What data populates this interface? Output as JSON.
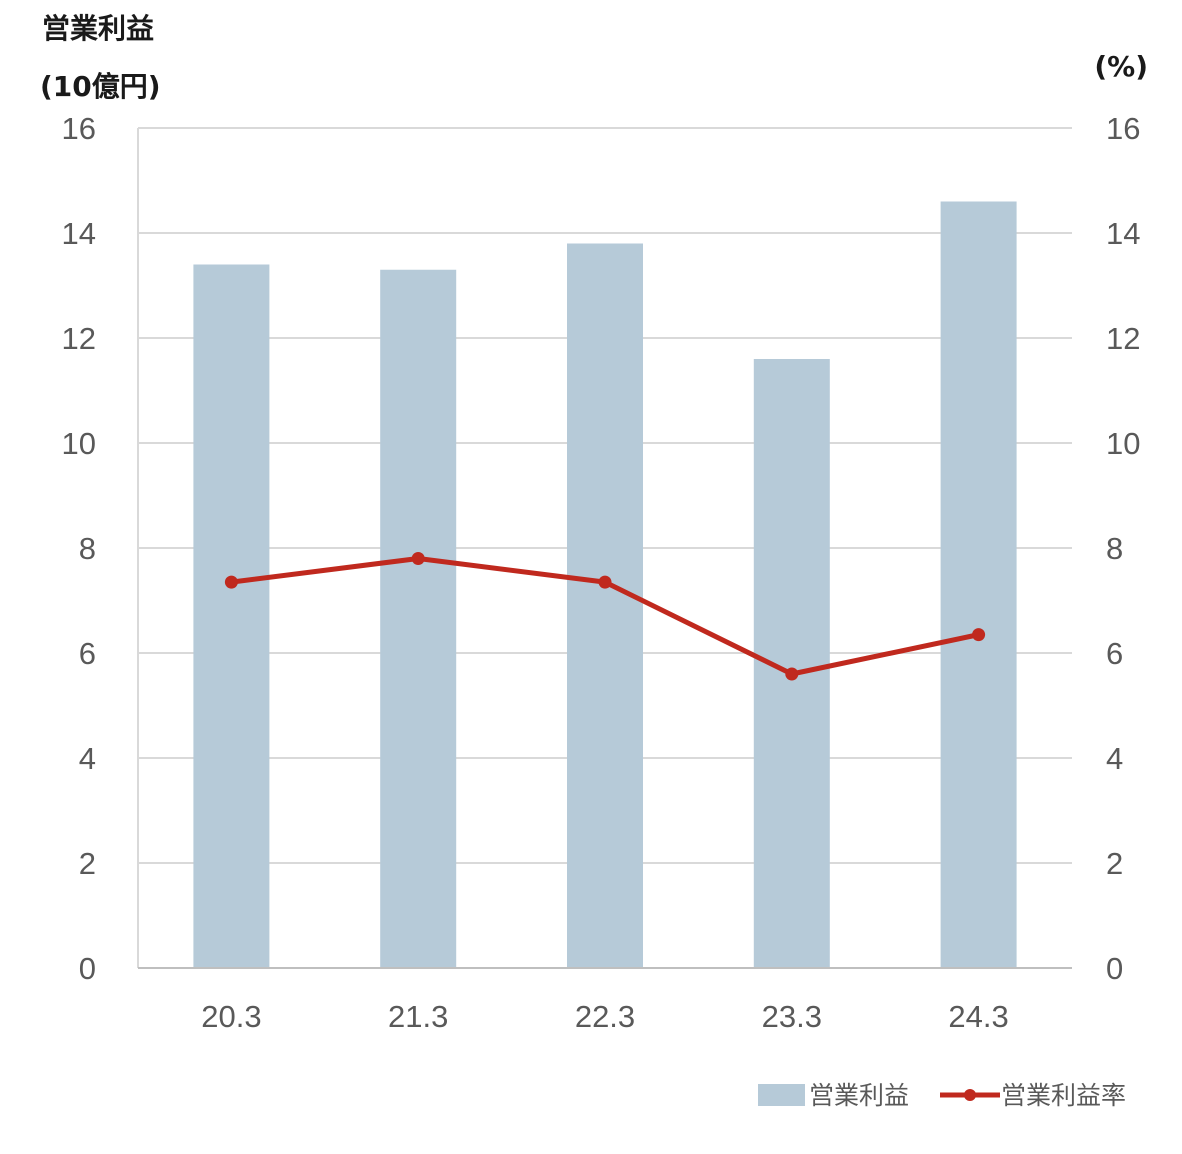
{
  "chart_data": {
    "type": "bar",
    "categories": [
      "20.3",
      "21.3",
      "22.3",
      "23.3",
      "24.3"
    ],
    "series": [
      {
        "name": "営業利益",
        "type": "bar",
        "axis": "left",
        "color": "#b6cad8",
        "values": [
          13.4,
          13.3,
          13.8,
          11.6,
          14.6
        ]
      },
      {
        "name": "営業利益率",
        "type": "line",
        "axis": "right",
        "color": "#c0291e",
        "values": [
          7.35,
          7.8,
          7.35,
          5.6,
          6.35
        ]
      }
    ],
    "title": "営業利益",
    "ylabel": "(10億円)",
    "y2label": "(%)",
    "ylim": [
      0,
      16
    ],
    "y2lim": [
      0,
      16
    ],
    "yticks": [
      "0",
      "2",
      "4",
      "6",
      "8",
      "10",
      "12",
      "14",
      "16"
    ],
    "y2ticks": [
      "0",
      "2",
      "4",
      "6",
      "8",
      "10",
      "12",
      "14",
      "16"
    ],
    "grid": true,
    "legend_position": "bottom-right"
  }
}
